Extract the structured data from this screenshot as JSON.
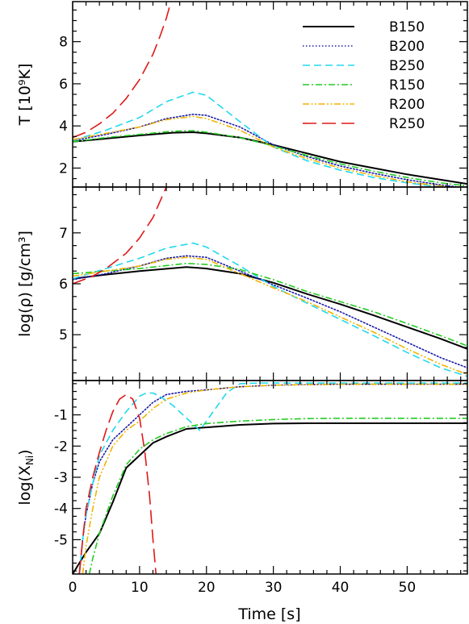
{
  "colors": {
    "B150": "#000000",
    "B200": "#1a1aa8",
    "B250": "#22d8ee",
    "R150": "#22cc22",
    "R200": "#f0b400",
    "R250": "#e01818"
  },
  "chart_data": [
    {
      "type": "line",
      "panel": "temperature",
      "ylabel": "T [10⁹K]",
      "xlim": [
        0,
        59
      ],
      "ylim": [
        1.1,
        9.9
      ],
      "yticks": [
        2,
        4,
        6,
        8
      ],
      "legend": "top-right",
      "series": [
        {
          "name": "B150",
          "style": "solid",
          "x": [
            0,
            5,
            10,
            15,
            18,
            20,
            25,
            30,
            35,
            40,
            45,
            50,
            55,
            59
          ],
          "y": [
            3.25,
            3.4,
            3.55,
            3.68,
            3.7,
            3.65,
            3.45,
            3.1,
            2.7,
            2.3,
            2.0,
            1.7,
            1.45,
            1.25
          ]
        },
        {
          "name": "B200",
          "style": "dotted",
          "x": [
            0,
            5,
            10,
            14,
            18,
            20,
            25,
            30,
            35,
            40,
            45,
            50,
            55,
            59
          ],
          "y": [
            3.3,
            3.6,
            3.95,
            4.35,
            4.55,
            4.5,
            3.95,
            3.1,
            2.55,
            2.1,
            1.75,
            1.45,
            1.2,
            1.05
          ]
        },
        {
          "name": "B250",
          "style": "dashed",
          "x": [
            0,
            5,
            10,
            14,
            18,
            20,
            25,
            30,
            35,
            40,
            45,
            50,
            55,
            59
          ],
          "y": [
            3.3,
            3.8,
            4.4,
            5.15,
            5.6,
            5.45,
            4.2,
            3.0,
            2.35,
            1.9,
            1.55,
            1.3,
            1.1,
            1.0
          ]
        },
        {
          "name": "R150",
          "style": "dashdot",
          "x": [
            0,
            5,
            10,
            15,
            18,
            20,
            25,
            30,
            35,
            40,
            45,
            50,
            55,
            59
          ],
          "y": [
            3.25,
            3.45,
            3.6,
            3.75,
            3.78,
            3.7,
            3.45,
            3.05,
            2.6,
            2.2,
            1.85,
            1.55,
            1.3,
            1.15
          ]
        },
        {
          "name": "R200",
          "style": "dashdotdot",
          "x": [
            0,
            5,
            10,
            14,
            18,
            20,
            25,
            30,
            35,
            40,
            45,
            50,
            55,
            59
          ],
          "y": [
            3.35,
            3.65,
            3.95,
            4.3,
            4.45,
            4.35,
            3.8,
            3.0,
            2.45,
            2.0,
            1.65,
            1.35,
            1.15,
            1.0
          ]
        },
        {
          "name": "R250",
          "style": "longdash",
          "x": [
            0,
            2,
            4,
            6,
            8,
            10,
            12,
            13,
            14,
            14.6,
            15
          ],
          "y": [
            3.45,
            3.7,
            4.1,
            4.6,
            5.3,
            6.2,
            7.4,
            8.2,
            9.1,
            9.8,
            10.5
          ]
        }
      ]
    },
    {
      "type": "line",
      "panel": "density",
      "ylabel": "log(ρ) [g/cm³]",
      "xlim": [
        0,
        59
      ],
      "ylim": [
        4.1,
        7.9
      ],
      "yticks": [
        5,
        6,
        7
      ],
      "series": [
        {
          "name": "B150",
          "style": "solid",
          "x": [
            0,
            5,
            10,
            17,
            20,
            25,
            30,
            35,
            40,
            45,
            50,
            55,
            59
          ],
          "y": [
            6.1,
            6.18,
            6.25,
            6.33,
            6.3,
            6.2,
            6.02,
            5.8,
            5.6,
            5.38,
            5.15,
            4.92,
            4.72
          ]
        },
        {
          "name": "B200",
          "style": "dotted",
          "x": [
            0,
            5,
            10,
            14,
            17,
            20,
            25,
            30,
            35,
            40,
            45,
            50,
            55,
            59
          ],
          "y": [
            6.08,
            6.2,
            6.35,
            6.5,
            6.55,
            6.52,
            6.25,
            5.98,
            5.72,
            5.45,
            5.15,
            4.85,
            4.55,
            4.35
          ]
        },
        {
          "name": "B250",
          "style": "dashed",
          "x": [
            0,
            5,
            10,
            14,
            18,
            20,
            25,
            30,
            35,
            40,
            45,
            50,
            55,
            59
          ],
          "y": [
            6.1,
            6.3,
            6.5,
            6.7,
            6.8,
            6.72,
            6.35,
            5.95,
            5.62,
            5.3,
            4.98,
            4.65,
            4.35,
            4.18
          ]
        },
        {
          "name": "R150",
          "style": "dashdot",
          "x": [
            0,
            5,
            10,
            17,
            20,
            25,
            30,
            35,
            40,
            45,
            50,
            55,
            59
          ],
          "y": [
            6.2,
            6.25,
            6.3,
            6.4,
            6.38,
            6.28,
            6.08,
            5.85,
            5.65,
            5.45,
            5.22,
            4.98,
            4.78
          ]
        },
        {
          "name": "R200",
          "style": "dashdotdot",
          "x": [
            0,
            5,
            10,
            14,
            17,
            20,
            25,
            30,
            35,
            40,
            45,
            50,
            55,
            59
          ],
          "y": [
            6.15,
            6.25,
            6.35,
            6.48,
            6.52,
            6.48,
            6.2,
            5.92,
            5.65,
            5.35,
            5.05,
            4.72,
            4.42,
            4.22
          ]
        },
        {
          "name": "R250",
          "style": "longdash",
          "x": [
            0,
            3,
            5,
            8,
            10,
            12,
            13,
            14,
            14.5,
            15
          ],
          "y": [
            6.0,
            6.15,
            6.3,
            6.6,
            6.9,
            7.3,
            7.6,
            7.9,
            8.1,
            8.3
          ]
        }
      ]
    },
    {
      "type": "line",
      "panel": "nickel",
      "ylabel": "log(X_Ni)",
      "ylabel_main": "log(X",
      "ylabel_sub": "Ni",
      "ylabel_close": ")",
      "xlabel": "Time [s]",
      "xlim": [
        0,
        59
      ],
      "ylim": [
        -6.1,
        0.1
      ],
      "yticks": [
        -5,
        -4,
        -3,
        -2,
        -1
      ],
      "xticks": [
        0,
        10,
        20,
        30,
        40,
        50
      ],
      "series": [
        {
          "name": "B150",
          "style": "solid",
          "x": [
            0,
            2,
            4,
            6,
            8,
            10,
            12,
            14,
            17,
            20,
            25,
            30,
            35,
            40,
            45,
            50,
            55,
            59
          ],
          "y": [
            -6.1,
            -5.4,
            -4.8,
            -3.8,
            -2.7,
            -2.3,
            -1.9,
            -1.7,
            -1.45,
            -1.4,
            -1.32,
            -1.28,
            -1.27,
            -1.27,
            -1.27,
            -1.27,
            -1.27,
            -1.27
          ]
        },
        {
          "name": "B200",
          "style": "dotted",
          "x": [
            1,
            1.5,
            2,
            3,
            4,
            6,
            8,
            10,
            12,
            14,
            17,
            20,
            25,
            30,
            35,
            40,
            45,
            50,
            55,
            59
          ],
          "y": [
            -6.1,
            -5.0,
            -4.2,
            -3.2,
            -2.5,
            -1.8,
            -1.4,
            -1.0,
            -0.6,
            -0.35,
            -0.25,
            -0.2,
            -0.1,
            -0.05,
            -0.03,
            -0.02,
            -0.02,
            -0.02,
            -0.02,
            -0.02
          ]
        },
        {
          "name": "B250",
          "style": "dashed",
          "x": [
            1,
            1.5,
            2,
            3,
            4,
            6,
            8,
            10,
            11,
            12,
            13,
            15,
            17,
            19,
            21,
            23,
            25,
            28,
            30,
            35,
            40,
            50,
            59
          ],
          "y": [
            -6.1,
            -5.0,
            -4.2,
            -3.2,
            -2.3,
            -1.5,
            -0.9,
            -0.4,
            -0.3,
            -0.3,
            -0.4,
            -0.7,
            -1.1,
            -1.5,
            -0.9,
            -0.3,
            0.0,
            0.02,
            0.02,
            0.02,
            0.02,
            0.02,
            0.02
          ]
        },
        {
          "name": "R150",
          "style": "dashdot",
          "x": [
            2.5,
            3,
            4,
            6,
            8,
            10,
            12,
            14,
            17,
            20,
            25,
            30,
            35,
            40,
            45,
            50,
            55,
            59
          ],
          "y": [
            -6.1,
            -5.6,
            -4.8,
            -3.6,
            -2.6,
            -2.1,
            -1.8,
            -1.6,
            -1.38,
            -1.28,
            -1.2,
            -1.15,
            -1.12,
            -1.11,
            -1.11,
            -1.11,
            -1.11,
            -1.11
          ]
        },
        {
          "name": "R200",
          "style": "dashdotdot",
          "x": [
            1.5,
            2,
            3,
            4,
            6,
            8,
            10,
            12,
            14,
            17,
            20,
            25,
            30,
            35,
            40,
            45,
            50,
            55,
            59
          ],
          "y": [
            -6.1,
            -5.2,
            -4.0,
            -3.0,
            -2.0,
            -1.5,
            -1.2,
            -0.8,
            -0.5,
            -0.3,
            -0.2,
            -0.1,
            -0.05,
            -0.03,
            -0.02,
            -0.02,
            -0.02,
            -0.02,
            -0.02
          ]
        },
        {
          "name": "R250",
          "style": "longdash",
          "x": [
            1,
            1.5,
            2,
            3,
            4,
            5,
            6,
            7,
            8,
            9,
            10,
            10.8,
            11.5,
            12,
            12.5
          ],
          "y": [
            -6.1,
            -5.0,
            -4.0,
            -3.0,
            -2.2,
            -1.5,
            -0.9,
            -0.5,
            -0.35,
            -0.5,
            -1.1,
            -2.2,
            -3.6,
            -5.0,
            -6.2
          ]
        }
      ]
    }
  ]
}
